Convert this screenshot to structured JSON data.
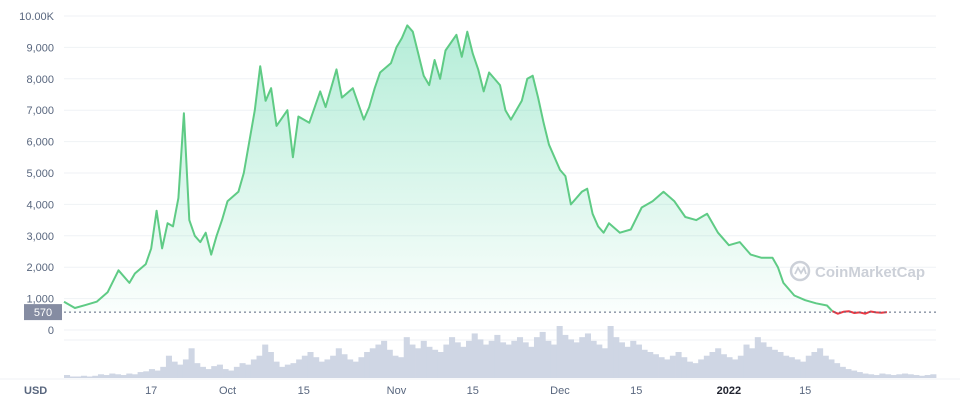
{
  "chart_data": {
    "type": "line",
    "currency": "USD",
    "watermark": "CoinMarketCap",
    "current_price_label": "570",
    "current_price": 570,
    "ylim": [
      0,
      10000
    ],
    "ytick_labels": [
      "0",
      "1,000",
      "2,000",
      "3,000",
      "4,000",
      "5,000",
      "6,000",
      "7,000",
      "8,000",
      "9,000",
      "10.00K"
    ],
    "ytick_values": [
      0,
      1000,
      2000,
      3000,
      4000,
      5000,
      6000,
      7000,
      8000,
      9000,
      10000
    ],
    "xtick_labels": [
      "17",
      "Oct",
      "15",
      "Nov",
      "15",
      "Dec",
      "15",
      "2022",
      "15"
    ],
    "xtick_day_index": [
      16,
      30,
      44,
      61,
      75,
      91,
      105,
      122,
      136
    ],
    "x_range_days": [
      0,
      160
    ],
    "colors": {
      "up": "#16c784",
      "line": "#5fcb85",
      "down": "#ea3943",
      "volume": "#cfd6e4"
    },
    "series": [
      {
        "values": [
          [
            0,
            900
          ],
          [
            2,
            700
          ],
          [
            4,
            800
          ],
          [
            6,
            900
          ],
          [
            8,
            1200
          ],
          [
            10,
            1900
          ],
          [
            12,
            1500
          ],
          [
            13,
            1800
          ],
          [
            15,
            2100
          ],
          [
            16,
            2600
          ],
          [
            17,
            3800
          ],
          [
            18,
            2600
          ],
          [
            19,
            3400
          ],
          [
            20,
            3300
          ],
          [
            21,
            4200
          ],
          [
            22,
            6900
          ],
          [
            23,
            3500
          ],
          [
            24,
            3000
          ],
          [
            25,
            2800
          ],
          [
            26,
            3100
          ],
          [
            27,
            2400
          ],
          [
            28,
            3000
          ],
          [
            29,
            3500
          ],
          [
            30,
            4100
          ],
          [
            32,
            4400
          ],
          [
            33,
            5000
          ],
          [
            35,
            7000
          ],
          [
            36,
            8400
          ],
          [
            37,
            7300
          ],
          [
            38,
            7700
          ],
          [
            39,
            6500
          ],
          [
            41,
            7000
          ],
          [
            42,
            5500
          ],
          [
            43,
            6800
          ],
          [
            45,
            6600
          ],
          [
            47,
            7600
          ],
          [
            48,
            7100
          ],
          [
            50,
            8300
          ],
          [
            51,
            7400
          ],
          [
            53,
            7700
          ],
          [
            55,
            6700
          ],
          [
            56,
            7100
          ],
          [
            57,
            7700
          ],
          [
            58,
            8200
          ],
          [
            60,
            8500
          ],
          [
            61,
            9000
          ],
          [
            62,
            9300
          ],
          [
            63,
            9700
          ],
          [
            64,
            9500
          ],
          [
            65,
            8800
          ],
          [
            66,
            8100
          ],
          [
            67,
            7800
          ],
          [
            68,
            8600
          ],
          [
            69,
            8000
          ],
          [
            70,
            8900
          ],
          [
            72,
            9400
          ],
          [
            73,
            8700
          ],
          [
            74,
            9500
          ],
          [
            75,
            8800
          ],
          [
            76,
            8300
          ],
          [
            77,
            7600
          ],
          [
            78,
            8200
          ],
          [
            80,
            7800
          ],
          [
            81,
            7000
          ],
          [
            82,
            6700
          ],
          [
            84,
            7300
          ],
          [
            85,
            8000
          ],
          [
            86,
            8100
          ],
          [
            87,
            7400
          ],
          [
            88,
            6600
          ],
          [
            89,
            5900
          ],
          [
            91,
            5100
          ],
          [
            92,
            4900
          ],
          [
            93,
            4000
          ],
          [
            95,
            4400
          ],
          [
            96,
            4500
          ],
          [
            97,
            3700
          ],
          [
            98,
            3300
          ],
          [
            99,
            3100
          ],
          [
            100,
            3400
          ],
          [
            102,
            3100
          ],
          [
            104,
            3200
          ],
          [
            106,
            3900
          ],
          [
            108,
            4100
          ],
          [
            110,
            4400
          ],
          [
            112,
            4100
          ],
          [
            114,
            3600
          ],
          [
            116,
            3500
          ],
          [
            118,
            3700
          ],
          [
            120,
            3100
          ],
          [
            122,
            2700
          ],
          [
            124,
            2800
          ],
          [
            126,
            2400
          ],
          [
            128,
            2300
          ],
          [
            130,
            2300
          ],
          [
            131,
            2000
          ],
          [
            132,
            1500
          ],
          [
            134,
            1100
          ],
          [
            136,
            950
          ],
          [
            138,
            850
          ],
          [
            140,
            780
          ],
          [
            141,
            600
          ]
        ]
      },
      {
        "trend": "down",
        "values": [
          [
            141,
            600
          ],
          [
            142,
            520
          ],
          [
            143,
            580
          ],
          [
            144,
            600
          ],
          [
            145,
            540
          ],
          [
            146,
            560
          ],
          [
            147,
            520
          ],
          [
            148,
            590
          ],
          [
            149,
            560
          ],
          [
            150,
            550
          ],
          [
            151,
            570
          ]
        ]
      }
    ],
    "volume": [
      4,
      2,
      2,
      3,
      2,
      3,
      5,
      4,
      6,
      5,
      4,
      6,
      5,
      8,
      9,
      12,
      10,
      15,
      30,
      22,
      18,
      25,
      40,
      20,
      15,
      12,
      16,
      18,
      12,
      10,
      15,
      20,
      18,
      25,
      30,
      45,
      35,
      22,
      15,
      18,
      20,
      25,
      30,
      35,
      28,
      22,
      25,
      30,
      40,
      32,
      25,
      22,
      28,
      35,
      40,
      45,
      50,
      38,
      30,
      28,
      55,
      45,
      40,
      50,
      42,
      38,
      35,
      45,
      55,
      48,
      42,
      50,
      60,
      52,
      45,
      50,
      58,
      48,
      45,
      50,
      55,
      48,
      42,
      55,
      62,
      50,
      45,
      70,
      58,
      52,
      48,
      55,
      60,
      50,
      45,
      40,
      70,
      55,
      48,
      42,
      50,
      45,
      38,
      35,
      32,
      28,
      25,
      30,
      35,
      28,
      22,
      20,
      25,
      30,
      35,
      40,
      32,
      28,
      25,
      30,
      45,
      40,
      55,
      48,
      42,
      38,
      35,
      30,
      28,
      25,
      22,
      30,
      35,
      40,
      30,
      25,
      20,
      15,
      12,
      10,
      8,
      6,
      5,
      4,
      6,
      5,
      4,
      5,
      6,
      5,
      4,
      3,
      4,
      5
    ]
  }
}
